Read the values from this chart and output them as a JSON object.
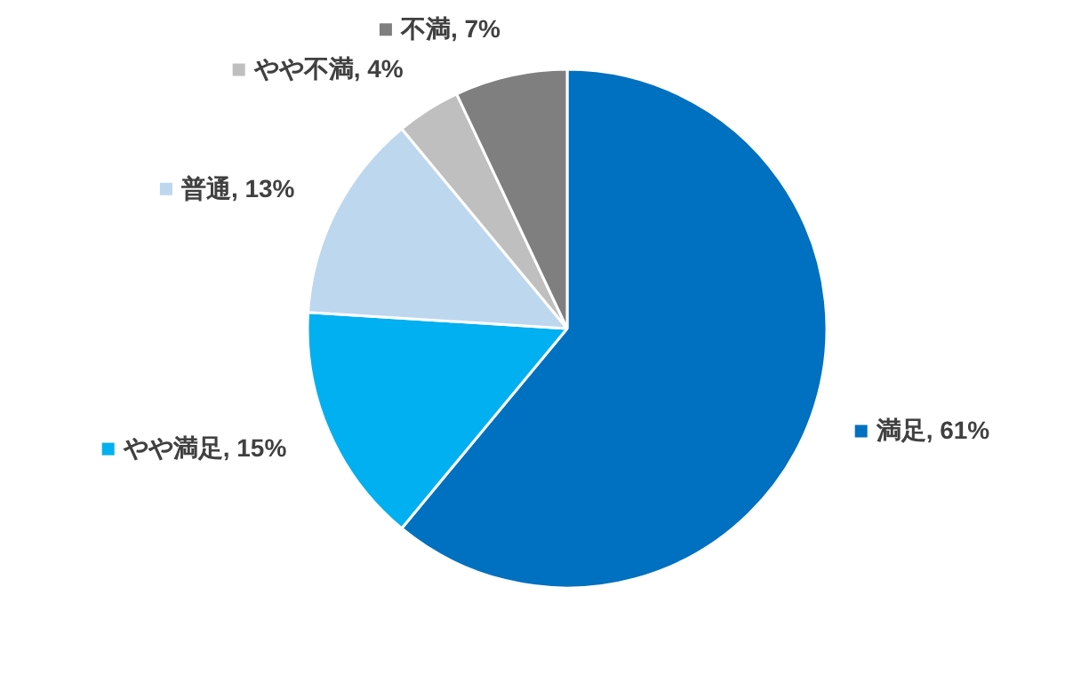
{
  "chart_data": {
    "type": "pie",
    "categories": [
      "満足",
      "やや満足",
      "普通",
      "やや不満",
      "不満"
    ],
    "values": [
      61,
      15,
      13,
      4,
      7
    ],
    "colors": [
      "#0070c0",
      "#00b0f0",
      "#bdd7ee",
      "#bfbfbf",
      "#7f7f7f"
    ],
    "value_labels": [
      "61%",
      "15%",
      "13%",
      "4%",
      "7%"
    ],
    "data_labels": true,
    "legend": "top"
  }
}
